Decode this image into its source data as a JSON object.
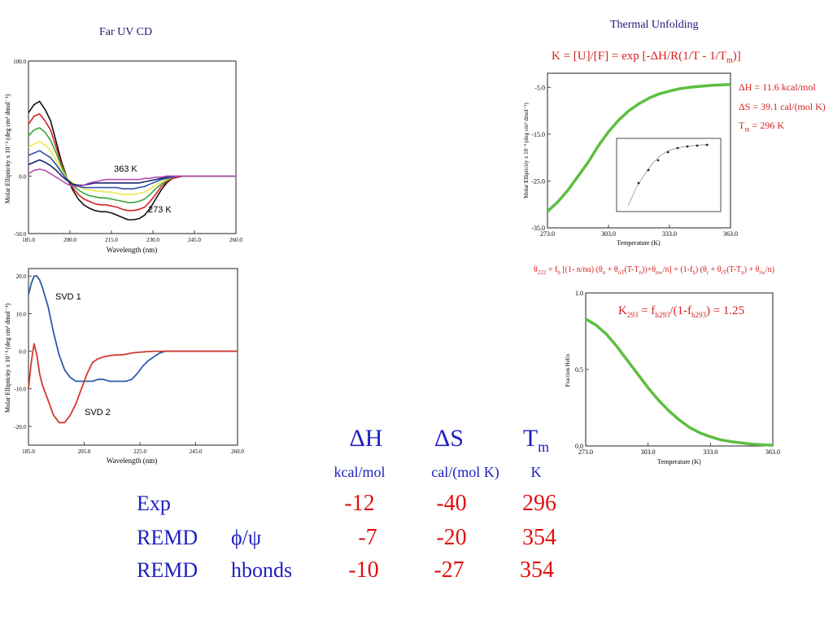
{
  "colors": {
    "black": "#111111",
    "red": "#d62020",
    "green": "#3aa53a",
    "yellow": "#e9e94a",
    "blue": "#2c4fa5",
    "navy": "#1b2370",
    "magenta": "#b44cb4",
    "svd1": "#2e5ba8",
    "svd2": "#d23a2a",
    "fit": "#5cbf3f"
  },
  "farUV": {
    "title": "Far UV CD",
    "label_hot": "363 K",
    "label_cold": "273 K"
  },
  "svd": {
    "label1": "SVD 1",
    "label2": "SVD 2"
  },
  "thermal": {
    "title": "Thermal Unfolding",
    "equation": "K = [U]/[F] = exp [-ΔH/R(1/T - 1/Tm)]",
    "dH": "ΔH = 11.6 kcal/mol",
    "dS": "ΔS = 39.1 cal/(mol K)",
    "Tm": "Tm = 296 K"
  },
  "model_equation": "θ222 = fh [(1- n/nα) (θn + θnT(T-Tn))+θnw/n] + (1-fh) (θr + θrT(T-Tn) + θrw/n)",
  "fraction": {
    "equation": "K293 = fh293/(1-fh293) = 1.25"
  },
  "table": {
    "headers": [
      {
        "sym": "ΔH",
        "unit": "kcal/mol"
      },
      {
        "sym": "ΔS",
        "unit": "cal/(mol K)"
      },
      {
        "sym": "Tm",
        "unit": "K"
      }
    ],
    "rows": [
      {
        "label": "Exp",
        "label2": "",
        "dH": "-12",
        "dS": "-40",
        "Tm": "296"
      },
      {
        "label": "REMD",
        "label2": "ϕ/ψ",
        "dH": "-7",
        "dS": "-20",
        "Tm": "354"
      },
      {
        "label": "REMD",
        "label2": "hbonds",
        "dH": "-10",
        "dS": "-27",
        "Tm": "354"
      }
    ]
  },
  "chart_data": [
    {
      "type": "line",
      "title": "Far UV CD",
      "xlabel": "Wavelength (nm)",
      "ylabel": "Molar Ellipticity x 10⁻³ (deg cm² dmol⁻¹)",
      "xlim": [
        185,
        260
      ],
      "ylim": [
        -50,
        100
      ],
      "xticks": [
        "185.0",
        "200.0",
        "215.0",
        "230.0",
        "245.0",
        "260.0"
      ],
      "yticks": [
        "100.0",
        "0.0",
        "-50.0"
      ],
      "x": [
        185,
        187,
        189,
        191,
        193,
        195,
        197,
        199,
        201,
        203,
        205,
        207,
        209,
        211,
        213,
        215,
        217,
        219,
        221,
        223,
        225,
        227,
        229,
        231,
        233,
        235,
        237,
        239,
        241,
        243,
        245,
        250,
        255,
        260
      ],
      "series": [
        {
          "name": "273 K",
          "color": "black",
          "values": [
            55,
            62,
            65,
            58,
            48,
            30,
            12,
            -2,
            -12,
            -20,
            -25,
            -28,
            -30,
            -31,
            -31,
            -32,
            -34,
            -36,
            -38,
            -38,
            -37,
            -34,
            -28,
            -20,
            -12,
            -6,
            -2,
            -1,
            0,
            0,
            0,
            0,
            0,
            0
          ]
        },
        {
          "name": "",
          "color": "red",
          "values": [
            45,
            52,
            54,
            48,
            40,
            25,
            10,
            -2,
            -10,
            -16,
            -20,
            -22,
            -24,
            -25,
            -25,
            -26,
            -27,
            -29,
            -30,
            -30,
            -29,
            -27,
            -22,
            -16,
            -9,
            -5,
            -2,
            -1,
            0,
            0,
            0,
            0,
            0,
            0
          ]
        },
        {
          "name": "",
          "color": "green",
          "values": [
            35,
            40,
            42,
            38,
            31,
            20,
            8,
            -2,
            -8,
            -12,
            -15,
            -17,
            -18,
            -19,
            -19,
            -20,
            -21,
            -22,
            -23,
            -23,
            -22,
            -20,
            -16,
            -11,
            -7,
            -4,
            -1,
            0,
            0,
            0,
            0,
            0,
            0,
            0
          ]
        },
        {
          "name": "",
          "color": "yellow",
          "values": [
            25,
            28,
            30,
            27,
            22,
            14,
            5,
            -2,
            -6,
            -9,
            -11,
            -12,
            -13,
            -13,
            -14,
            -14,
            -15,
            -16,
            -16,
            -16,
            -15,
            -14,
            -11,
            -8,
            -5,
            -3,
            -1,
            0,
            0,
            0,
            0,
            0,
            0,
            0
          ]
        },
        {
          "name": "",
          "color": "blue",
          "values": [
            18,
            20,
            22,
            19,
            16,
            10,
            3,
            -3,
            -7,
            -9,
            -10,
            -10,
            -10,
            -10,
            -10,
            -10,
            -10,
            -11,
            -11,
            -11,
            -10,
            -9,
            -7,
            -5,
            -3,
            -2,
            -1,
            0,
            0,
            0,
            0,
            0,
            0,
            0
          ]
        },
        {
          "name": "",
          "color": "navy",
          "values": [
            10,
            12,
            14,
            12,
            9,
            5,
            0,
            -4,
            -7,
            -8,
            -8,
            -7,
            -6,
            -6,
            -6,
            -6,
            -6,
            -6,
            -6,
            -6,
            -6,
            -5,
            -4,
            -3,
            -2,
            -1,
            0,
            0,
            0,
            0,
            0,
            0,
            0,
            0
          ]
        },
        {
          "name": "363 K",
          "color": "magenta",
          "values": [
            2,
            5,
            6,
            5,
            2,
            -1,
            -4,
            -7,
            -9,
            -9,
            -8,
            -6,
            -5,
            -4,
            -3,
            -3,
            -3,
            -3,
            -3,
            -3,
            -3,
            -2,
            -2,
            -1,
            -1,
            0,
            0,
            0,
            0,
            0,
            0,
            0,
            0,
            0
          ]
        }
      ]
    },
    {
      "type": "line",
      "xlabel": "Wavelength (nm)",
      "ylabel": "Molar Ellipticity x 10⁻³ (deg cm² dmol⁻¹)",
      "xlim": [
        185,
        260
      ],
      "ylim": [
        -25,
        22
      ],
      "xticks": [
        "185.0",
        "205.0",
        "225.0",
        "245.0",
        "260.0"
      ],
      "yticks": [
        "20.0",
        "10.0",
        "0.0",
        "-10.0",
        "-20.0"
      ],
      "x": [
        185,
        186,
        187,
        188,
        189,
        190,
        192,
        194,
        196,
        198,
        200,
        202,
        204,
        206,
        208,
        210,
        212,
        214,
        216,
        218,
        220,
        222,
        224,
        226,
        228,
        230,
        232,
        234,
        236,
        240,
        245,
        250,
        255,
        260
      ],
      "series": [
        {
          "name": "SVD 1",
          "color": "svd1",
          "values": [
            15,
            18,
            20,
            20,
            19,
            17,
            12,
            5,
            -1,
            -5,
            -7,
            -8,
            -8,
            -8,
            -8,
            -7.5,
            -7.5,
            -8,
            -8,
            -8,
            -8,
            -7.5,
            -6,
            -4,
            -2.5,
            -1.5,
            -0.5,
            0,
            0,
            0,
            0,
            0,
            0,
            0
          ]
        },
        {
          "name": "SVD 2",
          "color": "svd2",
          "values": [
            -10,
            -3,
            2,
            -1,
            -6,
            -9,
            -13,
            -17,
            -19,
            -19,
            -17,
            -14,
            -10,
            -6,
            -3,
            -2,
            -1.5,
            -1.2,
            -1,
            -1,
            -0.8,
            -0.5,
            -0.3,
            -0.2,
            -0.1,
            0,
            0,
            0,
            0,
            0,
            0,
            0,
            0,
            0
          ]
        }
      ]
    },
    {
      "type": "line",
      "title": "Thermal Unfolding",
      "xlabel": "Temperature (K)",
      "ylabel": "Molar Ellipticity x 10⁻³ (deg cm² dmol⁻¹)",
      "xlim": [
        273,
        363
      ],
      "ylim": [
        -35,
        -2
      ],
      "xticks": [
        "273.0",
        "303.0",
        "333.0",
        "363.0"
      ],
      "yticks": [
        "-5.0",
        "-15.0",
        "-25.0",
        "-35.0"
      ],
      "x": [
        273,
        278,
        283,
        288,
        293,
        298,
        303,
        308,
        313,
        318,
        323,
        328,
        333,
        338,
        343,
        348,
        353,
        358,
        363
      ],
      "series": [
        {
          "name": "",
          "color": "fit",
          "values": [
            -31.5,
            -29.5,
            -27,
            -24,
            -21,
            -17.5,
            -14.5,
            -12,
            -10,
            -8.5,
            -7.3,
            -6.4,
            -5.8,
            -5.3,
            -5,
            -4.8,
            -4.6,
            -4.5,
            -4.4
          ]
        }
      ]
    },
    {
      "type": "line",
      "xlabel": "Temperature (K)",
      "ylabel": "Fraction Helix",
      "xlim": [
        273,
        363
      ],
      "ylim": [
        0,
        1
      ],
      "xticks": [
        "273.0",
        "303.0",
        "333.0",
        "363.0"
      ],
      "yticks": [
        "1.0",
        "0.5",
        "0.0"
      ],
      "x": [
        273,
        278,
        283,
        288,
        293,
        298,
        303,
        308,
        313,
        318,
        323,
        328,
        333,
        338,
        343,
        348,
        353,
        358,
        363
      ],
      "series": [
        {
          "name": "",
          "color": "fit",
          "values": [
            0.83,
            0.79,
            0.73,
            0.65,
            0.56,
            0.47,
            0.38,
            0.3,
            0.23,
            0.17,
            0.12,
            0.085,
            0.06,
            0.04,
            0.028,
            0.02,
            0.012,
            0.008,
            0.005
          ]
        }
      ]
    }
  ]
}
